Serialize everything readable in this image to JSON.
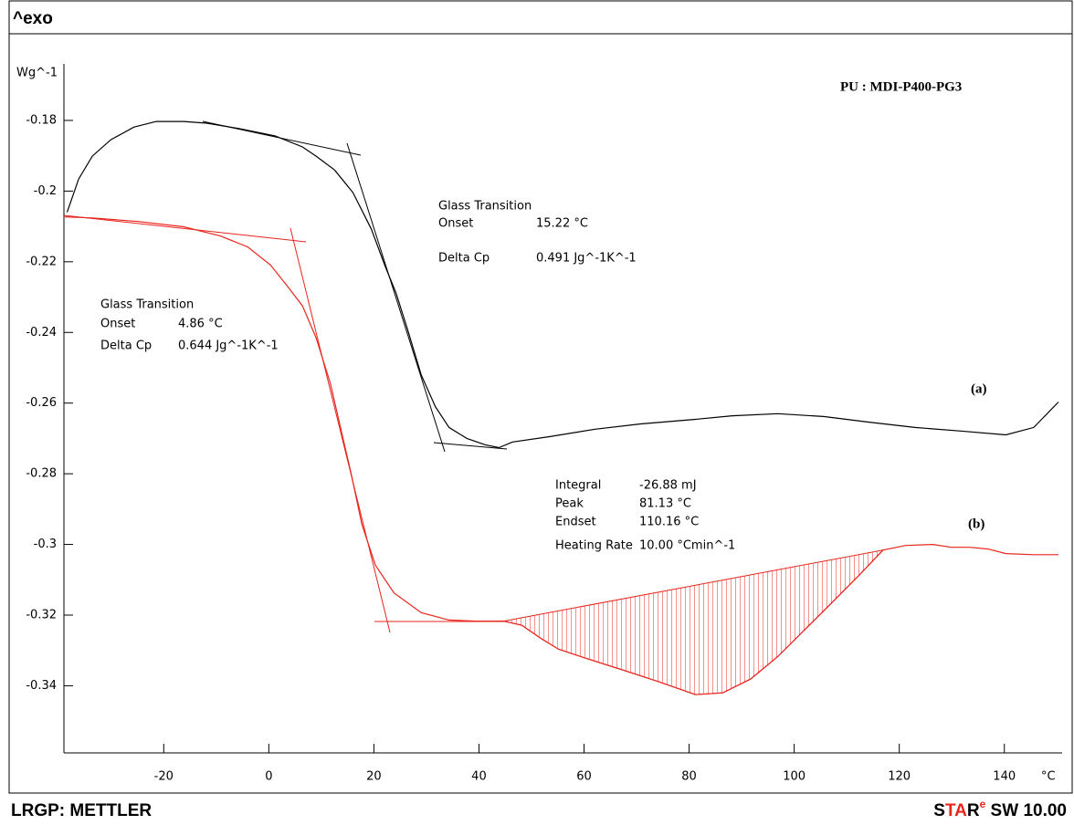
{
  "header": "^exo",
  "footer_left": "LRGP: METTLER",
  "footer_right": [
    "S",
    "TA",
    "R",
    "e",
    " SW 10.00"
  ],
  "chart_data": {
    "type": "line",
    "title": "PU : MDI-P400-PG3",
    "y_label": "Wg^-1",
    "x_label": "°C",
    "xlim": [
      -39,
      151
    ],
    "ylim": [
      -0.359,
      -0.164
    ],
    "xticks": [
      -20,
      0,
      20,
      40,
      60,
      80,
      100,
      120,
      140
    ],
    "yticks": [
      -0.18,
      -0.2,
      -0.22,
      -0.24,
      -0.26,
      -0.28,
      -0.3,
      -0.32,
      -0.34
    ],
    "series": [
      {
        "name": "(a)",
        "color": "#000000",
        "x": [
          -38.4,
          -36.2,
          -33.6,
          -30.1,
          -25.7,
          -21.4,
          -16.2,
          -11.8,
          -5.7,
          1.2,
          6.4,
          9.0,
          12.5,
          16.0,
          19.5,
          22.1,
          24.2,
          26.4,
          29.0,
          31.7,
          34.3,
          37.7,
          41.2,
          43.8,
          46.4,
          53.4,
          62.1,
          70.8,
          81.2,
          88.2,
          96.9,
          105.6,
          114.3,
          123.0,
          131.7,
          140.3,
          145.6,
          150.3
        ],
        "values": [
          -0.206,
          -0.1966,
          -0.1901,
          -0.1855,
          -0.1819,
          -0.1803,
          -0.1803,
          -0.1808,
          -0.1823,
          -0.1844,
          -0.1875,
          -0.1901,
          -0.194,
          -0.2004,
          -0.2107,
          -0.2211,
          -0.2288,
          -0.2391,
          -0.252,
          -0.261,
          -0.2669,
          -0.27,
          -0.2718,
          -0.2726,
          -0.271,
          -0.2695,
          -0.2674,
          -0.2659,
          -0.2646,
          -0.2636,
          -0.263,
          -0.2638,
          -0.2654,
          -0.2669,
          -0.2679,
          -0.269,
          -0.2669,
          -0.2597
        ]
      },
      {
        "name": "(b)",
        "color": "#e8241c",
        "x": [
          -38.8,
          -33.6,
          -24.9,
          -16.2,
          -9.2,
          -4.0,
          0.3,
          3.8,
          6.4,
          9.0,
          11.7,
          13.7,
          15.7,
          17.7,
          20.3,
          23.8,
          29.0,
          34.3,
          39.5,
          44.7,
          48.2,
          51.7,
          55.1,
          60.3,
          67.3,
          74.3,
          81.2,
          86.4,
          91.7,
          96.9,
          102.1,
          107.3,
          112.5,
          116.9,
          121.2,
          126.4,
          129.9,
          133.4,
          136.9,
          140.3,
          145.6,
          150.3
        ],
        "values": [
          -0.2073,
          -0.2076,
          -0.2086,
          -0.2101,
          -0.2127,
          -0.2158,
          -0.2209,
          -0.2274,
          -0.2325,
          -0.2415,
          -0.2544,
          -0.2673,
          -0.2802,
          -0.2943,
          -0.3059,
          -0.3137,
          -0.3193,
          -0.3214,
          -0.3217,
          -0.3217,
          -0.3229,
          -0.3265,
          -0.3296,
          -0.3322,
          -0.3355,
          -0.3389,
          -0.3425,
          -0.342,
          -0.3381,
          -0.3317,
          -0.324,
          -0.3163,
          -0.3085,
          -0.3016,
          -0.3003,
          -0.3,
          -0.3008,
          -0.3008,
          -0.3013,
          -0.3026,
          -0.3029,
          -0.3029
        ]
      }
    ],
    "annotations": [
      {
        "color": "#000000",
        "lines": [
          [
            "Glass Transition"
          ],
          [
            "Onset",
            "15.22 °C"
          ],
          [
            "Delta Cp",
            "0.491 Jg^-1K^-1"
          ]
        ]
      },
      {
        "color": "#e8241c",
        "lines": [
          [
            "Glass Transition"
          ],
          [
            "Onset",
            "4.86 °C"
          ],
          [
            "Delta Cp",
            "0.644 Jg^-1K^-1"
          ]
        ]
      },
      {
        "color": "#e8241c",
        "lines": [
          [
            "Integral",
            "-26.88 mJ"
          ],
          [
            "Peak",
            "81.13 °C"
          ],
          [
            "Endset",
            "110.16 °C"
          ],
          [
            "Heating Rate",
            "10.00 °Cmin^-1"
          ]
        ]
      }
    ]
  }
}
